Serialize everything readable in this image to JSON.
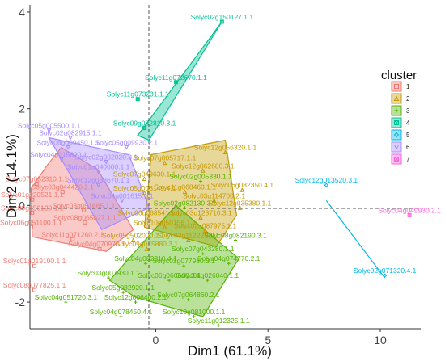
{
  "chart_data": {
    "type": "scatter",
    "xlabel": "Dim1 (61.1%)",
    "ylabel": "Dim2 (14.1%)",
    "xlim": [
      -5.6,
      11.8
    ],
    "ylim": [
      -2.55,
      4.15
    ],
    "x_ticks": [
      0,
      5,
      10
    ],
    "y_ticks": [
      -2,
      0,
      2,
      4
    ],
    "grid": false,
    "legend": {
      "title": "cluster",
      "position": "right",
      "entries": [
        "1",
        "2",
        "3",
        "4",
        "5",
        "6",
        "7"
      ]
    },
    "clusters": [
      {
        "id": "1",
        "color": "#F07A72",
        "shape": "square",
        "hull": [
          [
            -5.55,
            0.35
          ],
          [
            -4.8,
            0.85
          ],
          [
            -4.2,
            1.2
          ],
          [
            -2.6,
            0.75
          ],
          [
            -1.0,
            -0.5
          ],
          [
            -2.2,
            -0.95
          ],
          [
            -5.5,
            -0.65
          ]
        ]
      },
      {
        "id": "2",
        "color": "#C49A00",
        "shape": "triangle",
        "hull": [
          [
            -0.2,
            1.05
          ],
          [
            3.1,
            1.35
          ],
          [
            3.6,
            -0.2
          ],
          [
            2.7,
            -0.85
          ],
          [
            -0.5,
            -0.45
          ]
        ]
      },
      {
        "id": "3",
        "color": "#53B400",
        "shape": "plus",
        "hull": [
          [
            -2.05,
            -1.55
          ],
          [
            0.9,
            0.0
          ],
          [
            3.7,
            -1.1
          ],
          [
            2.1,
            -2.3
          ],
          [
            -0.9,
            -1.9
          ]
        ]
      },
      {
        "id": "4",
        "color": "#00C094",
        "shape": "cross",
        "hull": [
          [
            -0.8,
            1.45
          ],
          [
            2.95,
            3.8
          ],
          [
            -0.3,
            1.35
          ]
        ]
      },
      {
        "id": "5",
        "color": "#00B6EB",
        "shape": "diamond",
        "hull": [
          [
            7.6,
            0.1
          ],
          [
            10.2,
            -1.5
          ]
        ]
      },
      {
        "id": "6",
        "color": "#A58AFF",
        "shape": "triangle-down",
        "hull": [
          [
            -4.75,
            1.4
          ],
          [
            -1.2,
            1.05
          ],
          [
            -0.9,
            0.7
          ],
          [
            -0.3,
            -0.05
          ],
          [
            -2.4,
            -0.5
          ]
        ]
      },
      {
        "id": "7",
        "color": "#FB61D7",
        "shape": "square-cross",
        "hull": []
      }
    ],
    "points": [
      {
        "label": "Solyc02g150127.1.1",
        "x": 2.95,
        "y": 3.8,
        "cluster": "4"
      },
      {
        "label": "Solyc11g072670.1.1",
        "x": 0.9,
        "y": 2.55,
        "cluster": "4"
      },
      {
        "label": "Solyc11g073231.1.1",
        "x": -0.8,
        "y": 2.2,
        "cluster": "4"
      },
      {
        "label": "Solyc05g005500.1.1",
        "x": -4.75,
        "y": 1.55,
        "cluster": "6"
      },
      {
        "label": "Solyc09g082810.3.1",
        "x": -0.5,
        "y": 1.6,
        "cluster": "4"
      },
      {
        "label": "Solyc02g082915.1.1",
        "x": -3.8,
        "y": 1.4,
        "cluster": "6"
      },
      {
        "label": "Solyc06g009450.1.1",
        "x": -3.9,
        "y": 1.2,
        "cluster": "6"
      },
      {
        "label": "Solyc05g009930.2.1",
        "x": -1.3,
        "y": 1.2,
        "cluster": "6"
      },
      {
        "label": "Solyc12g056320.1.1",
        "x": 3.1,
        "y": 1.1,
        "cluster": "2"
      },
      {
        "label": "Solyc04g015820.1.1",
        "x": -4.2,
        "y": 0.95,
        "cluster": "6"
      },
      {
        "label": "Solyc02g082020.3.1",
        "x": -2.2,
        "y": 0.9,
        "cluster": "6"
      },
      {
        "label": "Solyc07g005717.1.1",
        "x": 0.4,
        "y": 0.88,
        "cluster": "2"
      },
      {
        "label": "Solyc12g062680.3.1",
        "x": 2.1,
        "y": 0.72,
        "cluster": "2"
      },
      {
        "label": "Solyc01g040000.1.1",
        "x": -2.55,
        "y": 0.7,
        "cluster": "6"
      },
      {
        "label": "Solyc07g049630.1.1",
        "x": -0.5,
        "y": 0.55,
        "cluster": "2"
      },
      {
        "label": "Solyc02g005330.1.1",
        "x": 2.0,
        "y": 0.5,
        "cluster": "3"
      },
      {
        "label": "Solyc07g052310.1.1",
        "x": -5.3,
        "y": 0.45,
        "cluster": "1"
      },
      {
        "label": "Solyc12g038670.1.1",
        "x": -2.55,
        "y": 0.42,
        "cluster": "6"
      },
      {
        "label": "Solyc11g068460.1.1",
        "x": 1.3,
        "y": 0.28,
        "cluster": "2"
      },
      {
        "label": "Solyc06g082350.4.1",
        "x": 3.85,
        "y": 0.32,
        "cluster": "2"
      },
      {
        "label": "Solyc12g013520.3.1",
        "x": 7.6,
        "y": 0.42,
        "cluster": "5"
      },
      {
        "label": "Solyc03g044420.2.1",
        "x": -4.15,
        "y": 0.28,
        "cluster": "1"
      },
      {
        "label": "Solyc05g008149.4.1",
        "x": -0.5,
        "y": 0.26,
        "cluster": "2"
      },
      {
        "label": "Solyc03g114700.2.1",
        "x": 2.6,
        "y": 0.1,
        "cluster": "2"
      },
      {
        "label": "Solyc01g020521.1.1",
        "x": -5.5,
        "y": 0.12,
        "cluster": "1"
      },
      {
        "label": "Solyc04g001615.1.1",
        "x": -1.5,
        "y": 0.1,
        "cluster": "6"
      },
      {
        "label": "Solyc12g035380.1.1",
        "x": 3.75,
        "y": -0.05,
        "cluster": "2"
      },
      {
        "label": "Solyc02g082130.3.1",
        "x": 1.3,
        "y": -0.05,
        "cluster": "3"
      },
      {
        "label": "Solyc09g150129.1.1",
        "x": -5.5,
        "y": -0.15,
        "cluster": "1"
      },
      {
        "label": "Solyc03g051665.1.1",
        "x": -3.2,
        "y": -0.1,
        "cluster": "1"
      },
      {
        "label": "Solyc06g068541.1.1",
        "x": -0.3,
        "y": -0.25,
        "cluster": "2"
      },
      {
        "label": "Solyc03g123710.3.1",
        "x": 2.0,
        "y": -0.25,
        "cluster": "2"
      },
      {
        "label": "Solyc04g049930.2.1",
        "x": 11.3,
        "y": -0.2,
        "cluster": "7"
      },
      {
        "label": "Solyc06g051100.1.1",
        "x": -5.55,
        "y": -0.45,
        "cluster": "1"
      },
      {
        "label": "Solyc08g065627.1.1",
        "x": -3.15,
        "y": -0.35,
        "cluster": "1"
      },
      {
        "label": "Solyc02g087975.1.1",
        "x": 2.2,
        "y": -0.52,
        "cluster": "2"
      },
      {
        "label": "Solyc10g050156.1.1",
        "x": 0.4,
        "y": -0.45,
        "cluster": "2"
      },
      {
        "label": "Solyc11g071260.2.1",
        "x": -3.7,
        "y": -0.7,
        "cluster": "1"
      },
      {
        "label": "Solyc05g502000.1.1",
        "x": -1.0,
        "y": -0.72,
        "cluster": "2"
      },
      {
        "label": "Solyc03g112220.1.1",
        "x": 1.45,
        "y": -0.72,
        "cluster": "2"
      },
      {
        "label": "Solyc08g082190.3.1",
        "x": 3.55,
        "y": -0.72,
        "cluster": "3"
      },
      {
        "label": "Solyc04g070970.1.1",
        "x": -2.5,
        "y": -0.9,
        "cluster": "1"
      },
      {
        "label": "Solyc09g075880.3.1",
        "x": -0.4,
        "y": -0.9,
        "cluster": "2"
      },
      {
        "label": "Solyc07g043280.1.1",
        "x": 2.1,
        "y": -1.0,
        "cluster": "3"
      },
      {
        "label": "Solyc01g019100.1.1",
        "x": -5.4,
        "y": -1.25,
        "cluster": "1"
      },
      {
        "label": "Solyc04g082310.4.1",
        "x": -0.45,
        "y": -1.2,
        "cluster": "3"
      },
      {
        "label": "Solyc02g077980.3.1",
        "x": 1.25,
        "y": -1.25,
        "cluster": "3"
      },
      {
        "label": "Solyc04g074770.2.1",
        "x": 3.25,
        "y": -1.2,
        "cluster": "3"
      },
      {
        "label": "Solyc03g007930.1.1",
        "x": -2.1,
        "y": -1.5,
        "cluster": "3"
      },
      {
        "label": "Solyc06g060660.3.1",
        "x": 0.6,
        "y": -1.55,
        "cluster": "3"
      },
      {
        "label": "Solyc04g026040.1.1",
        "x": 2.3,
        "y": -1.55,
        "cluster": "3"
      },
      {
        "label": "Solyc02g071320.4.1",
        "x": 10.2,
        "y": -1.45,
        "cluster": "5"
      },
      {
        "label": "Solyc08g077825.1.1",
        "x": -5.4,
        "y": -1.75,
        "cluster": "1"
      },
      {
        "label": "Solyc05g082920.1.1",
        "x": -1.45,
        "y": -1.8,
        "cluster": "3"
      },
      {
        "label": "Solyc07g064860.2.1",
        "x": 1.45,
        "y": -1.95,
        "cluster": "3"
      },
      {
        "label": "Solyc04g051720.3.1",
        "x": -4.0,
        "y": -2.0,
        "cluster": "3"
      },
      {
        "label": "Solyc12g006400.2.1",
        "x": -0.9,
        "y": -2.0,
        "cluster": "3"
      },
      {
        "label": "Solyc04g078450.4.1",
        "x": -1.55,
        "y": -2.3,
        "cluster": "3"
      },
      {
        "label": "Solyc10g081000.1.1",
        "x": 1.7,
        "y": -2.3,
        "cluster": "3"
      },
      {
        "label": "Solyc11g012325.1.1",
        "x": 2.8,
        "y": -2.48,
        "cluster": "3"
      }
    ]
  }
}
